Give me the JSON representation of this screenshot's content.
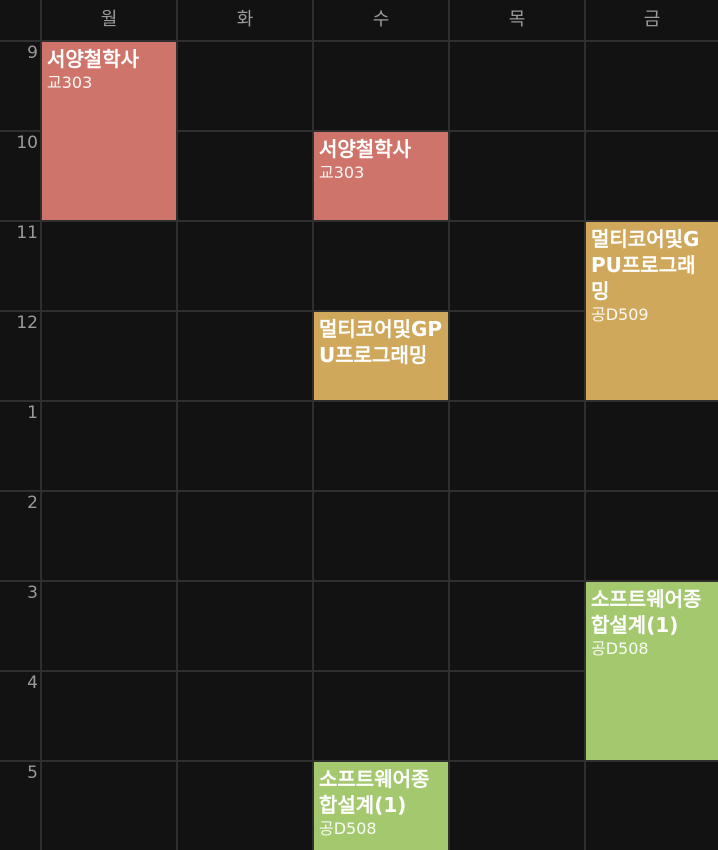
{
  "days": [
    "월",
    "화",
    "수",
    "목",
    "금"
  ],
  "hours": [
    "9",
    "10",
    "11",
    "12",
    "1",
    "2",
    "3",
    "4",
    "5"
  ],
  "events": [
    {
      "title": "서양철학사",
      "room": "교303",
      "color": "#cf746a"
    },
    {
      "title": "서양철학사",
      "room": "교303",
      "color": "#cf746a"
    },
    {
      "title": "멀티코어및GPU프로그래밍",
      "room": "공D509",
      "color": "#cfa85c"
    },
    {
      "title": "멀티코어및GPU프로그래밍",
      "room": "",
      "color": "#cfa85c"
    },
    {
      "title": "소프트웨어종합설계(1)",
      "room": "공D508",
      "color": "#a3c86d"
    },
    {
      "title": "소프트웨어종합설계(1)",
      "room": "공D508",
      "color": "#a3c86d"
    }
  ]
}
